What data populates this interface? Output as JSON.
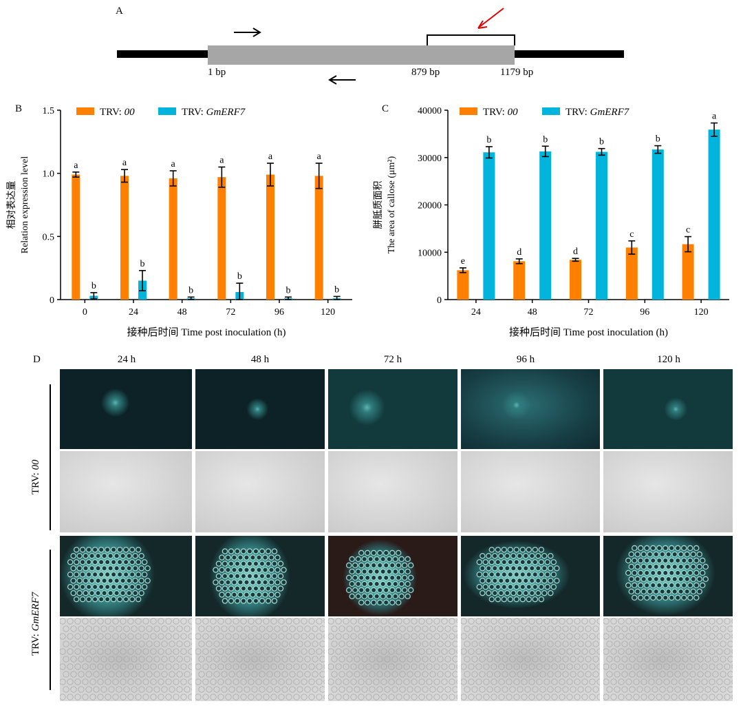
{
  "panel_a": {
    "label": "A",
    "pos_labels": [
      "1 bp",
      "879 bp",
      "1179 bp"
    ]
  },
  "panel_d": {
    "label": "D",
    "columns": [
      "24 h",
      "48 h",
      "72 h",
      "96 h",
      "120 h"
    ],
    "row_group_1_prefix": "TRV: ",
    "row_group_1_italic": "00",
    "row_group_2_prefix": "TRV: ",
    "row_group_2_italic": "GmERF7"
  },
  "chart_data": [
    {
      "panel": "B",
      "type": "bar",
      "legend": [
        {
          "prefix": "TRV: ",
          "italic": "00",
          "color": "#FF8000"
        },
        {
          "prefix": "TRV: ",
          "italic": "GmERF7",
          "color": "#00B4DC"
        }
      ],
      "categories": [
        "0",
        "24",
        "48",
        "72",
        "96",
        "120"
      ],
      "series": [
        {
          "name": "TRV: 00",
          "color": "#FF8000",
          "values": [
            0.99,
            0.98,
            0.96,
            0.97,
            0.99,
            0.98
          ],
          "errors": [
            0.02,
            0.05,
            0.06,
            0.08,
            0.09,
            0.1
          ],
          "letters": [
            "a",
            "a",
            "a",
            "a",
            "a",
            "a"
          ]
        },
        {
          "name": "TRV: GmERF7",
          "color": "#00B4DC",
          "values": [
            0.03,
            0.15,
            0.01,
            0.06,
            0.01,
            0.01
          ],
          "errors": [
            0.025,
            0.08,
            0.01,
            0.07,
            0.01,
            0.015
          ],
          "letters": [
            "b",
            "b",
            "b",
            "b",
            "b",
            "b"
          ]
        }
      ],
      "ylim": [
        0,
        1.5
      ],
      "yticks": [
        "0",
        "0.5",
        "1.0",
        "1.5"
      ],
      "ylabel_cn": "相对表达量",
      "ylabel_en": "Relation expression level",
      "xlabel": "接种后时间 Time post inoculation (h)"
    },
    {
      "panel": "C",
      "type": "bar",
      "legend": [
        {
          "prefix": "TRV: ",
          "italic": "00",
          "color": "#FF8000"
        },
        {
          "prefix": "TRV: ",
          "italic": "GmERF7",
          "color": "#00B4DC"
        }
      ],
      "categories": [
        "24",
        "48",
        "72",
        "96",
        "120"
      ],
      "series": [
        {
          "name": "TRV: 00",
          "color": "#FF8000",
          "values": [
            6200,
            8100,
            8400,
            11000,
            11700
          ],
          "errors": [
            500,
            500,
            300,
            1400,
            1600
          ],
          "letters": [
            "e",
            "d",
            "d",
            "c",
            "c"
          ]
        },
        {
          "name": "TRV: GmERF7",
          "color": "#00B4DC",
          "values": [
            31100,
            31300,
            31200,
            31700,
            35900
          ],
          "errors": [
            1200,
            1100,
            700,
            800,
            1400
          ],
          "letters": [
            "b",
            "b",
            "b",
            "b",
            "a"
          ]
        }
      ],
      "ylim": [
        0,
        40000
      ],
      "yticks": [
        "0",
        "10000",
        "20000",
        "30000",
        "40000"
      ],
      "ylabel_cn": "胼胝质面积",
      "ylabel_en": "The area of callose (μm²)",
      "xlabel": "接种后时间 Time post inoculation (h)"
    }
  ]
}
